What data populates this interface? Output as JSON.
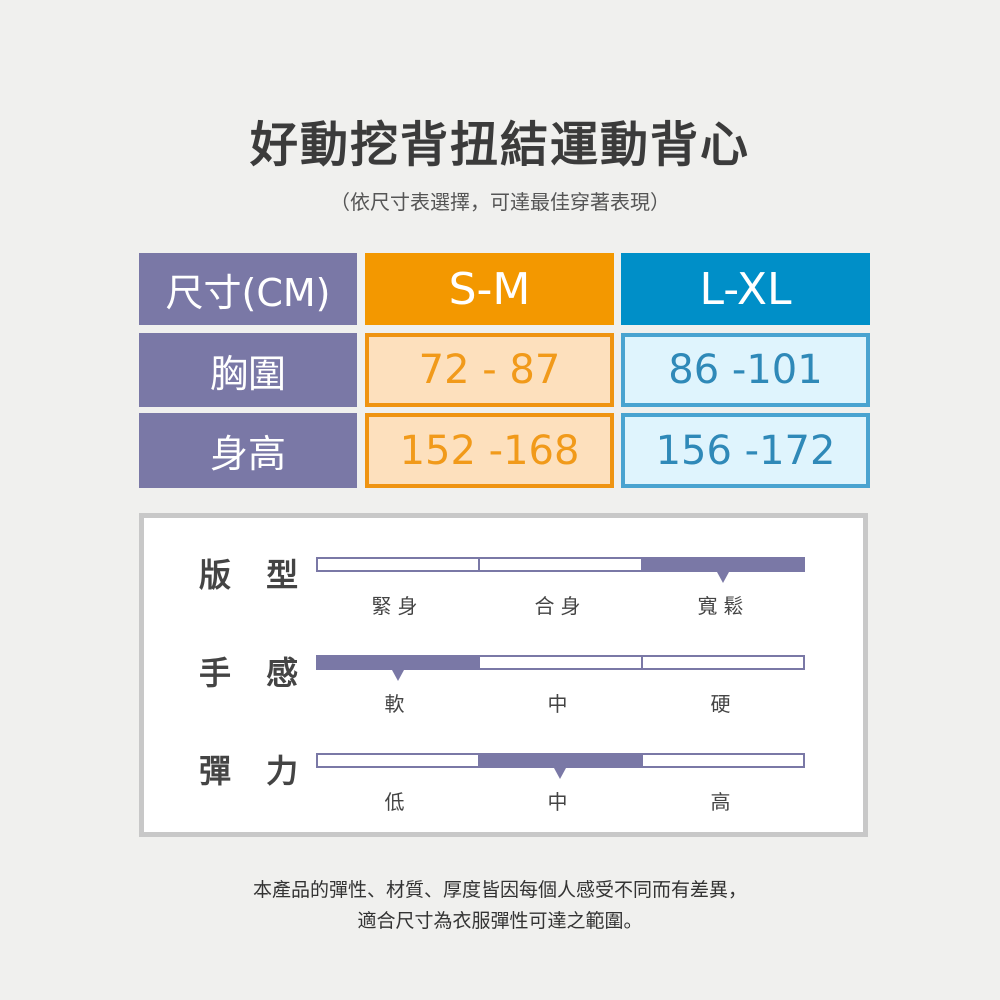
{
  "title": "好動挖背扭結運動背心",
  "subtitle": "（依尺寸表選擇，可達最佳穿著表現）",
  "size_table": {
    "header": [
      "尺寸(CM)",
      "S-M",
      "L-XL"
    ],
    "rows": [
      {
        "label": "胸圍",
        "sm": "72 - 87",
        "lxl": "86 -101"
      },
      {
        "label": "身高",
        "sm": "152 -168",
        "lxl": "156 -172"
      }
    ]
  },
  "colors": {
    "purple": "#7a78a6",
    "orange": "#f39800",
    "blue": "#008fc8"
  },
  "attributes": [
    {
      "label": "版 型",
      "options": [
        "緊身",
        "合身",
        "寬鬆"
      ],
      "selected": "寬鬆",
      "selected_index": 2
    },
    {
      "label": "手 感",
      "options": [
        "軟",
        "中",
        "硬"
      ],
      "selected": "軟",
      "selected_index": 0
    },
    {
      "label": "彈 力",
      "options": [
        "低",
        "中",
        "高"
      ],
      "selected": "中",
      "selected_index": 1
    }
  ],
  "footer": [
    "本產品的彈性、材質、厚度皆因每個人感受不同而有差異，",
    "適合尺寸為衣服彈性可達之範圍。"
  ]
}
